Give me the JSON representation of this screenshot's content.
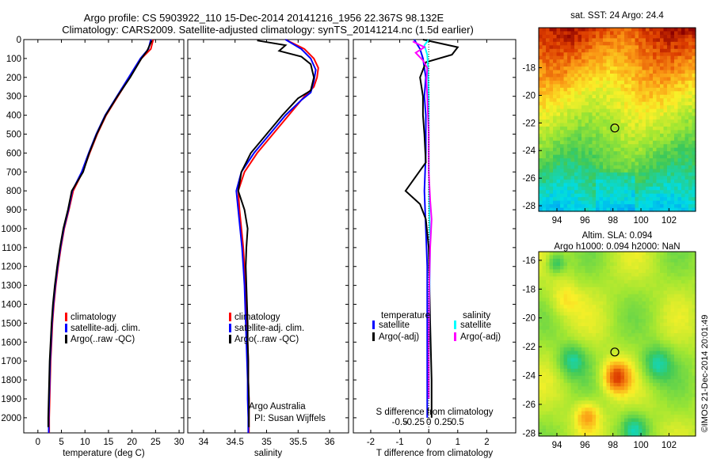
{
  "header": {
    "line1": "Argo profile: CS 5903922_110 15-Dec-2014 20141216_1956 22.367S 98.132E",
    "line2": "Climatology: CARS2009. Satellite-adjusted climatology: synTS_20141214.nc (1.5d earlier)"
  },
  "credit": "©IMOS 21-Dec-2014 20:01:49",
  "colors": {
    "climatology": "#ff0000",
    "satellite": "#0000ff",
    "argo": "#000000",
    "salinity_satellite": "#00ffff",
    "salinity_argo": "#ff00ff"
  },
  "chart_data": [
    {
      "type": "line",
      "xlabel": "temperature (deg C)",
      "xlim": [
        -3,
        31
      ],
      "ylim": [
        2080,
        0
      ],
      "xticks": [
        0,
        5,
        10,
        15,
        20,
        25,
        30
      ],
      "yticks": [
        0,
        100,
        200,
        300,
        400,
        500,
        600,
        700,
        800,
        900,
        1000,
        1100,
        1200,
        1300,
        1400,
        1500,
        1600,
        1700,
        1800,
        1900,
        2000
      ],
      "legend": [
        "climatology",
        "satellite-adj. clim.",
        "Argo(..raw -QC)"
      ],
      "series": [
        {
          "name": "climatology",
          "color": "#ff0000",
          "points": [
            [
              24.5,
              0
            ],
            [
              24.0,
              50
            ],
            [
              22.0,
              100
            ],
            [
              19.5,
              200
            ],
            [
              17.0,
              300
            ],
            [
              14.5,
              400
            ],
            [
              12.6,
              500
            ],
            [
              11.0,
              600
            ],
            [
              9.5,
              700
            ],
            [
              7.5,
              800
            ],
            [
              6.6,
              900
            ],
            [
              5.6,
              1000
            ],
            [
              4.9,
              1100
            ],
            [
              4.3,
              1200
            ],
            [
              3.8,
              1300
            ],
            [
              3.4,
              1400
            ],
            [
              3.1,
              1500
            ],
            [
              2.9,
              1600
            ],
            [
              2.7,
              1700
            ],
            [
              2.6,
              1800
            ],
            [
              2.5,
              1900
            ],
            [
              2.4,
              2000
            ],
            [
              2.4,
              2080
            ]
          ]
        },
        {
          "name": "satellite-adj. clim.",
          "color": "#0000ff",
          "points": [
            [
              24.0,
              0
            ],
            [
              23.5,
              50
            ],
            [
              21.8,
              100
            ],
            [
              19.3,
              200
            ],
            [
              16.8,
              300
            ],
            [
              14.3,
              400
            ],
            [
              12.4,
              500
            ],
            [
              10.8,
              600
            ],
            [
              9.3,
              700
            ],
            [
              7.3,
              800
            ],
            [
              6.5,
              900
            ],
            [
              5.5,
              1000
            ],
            [
              4.8,
              1100
            ],
            [
              4.2,
              1200
            ],
            [
              3.7,
              1300
            ],
            [
              3.3,
              1400
            ],
            [
              3.0,
              1500
            ],
            [
              2.8,
              1600
            ],
            [
              2.6,
              1700
            ],
            [
              2.5,
              1800
            ],
            [
              2.4,
              1900
            ],
            [
              2.3,
              2000
            ],
            [
              2.3,
              2080
            ]
          ]
        },
        {
          "name": "Argo(..raw -QC)",
          "color": "#000000",
          "points": [
            [
              24.2,
              5
            ],
            [
              23.2,
              60
            ],
            [
              22.0,
              100
            ],
            [
              19.6,
              200
            ],
            [
              16.9,
              300
            ],
            [
              14.4,
              400
            ],
            [
              12.5,
              500
            ],
            [
              10.9,
              600
            ],
            [
              9.6,
              700
            ],
            [
              7.2,
              800
            ],
            [
              6.4,
              900
            ],
            [
              5.4,
              1000
            ],
            [
              4.7,
              1100
            ],
            [
              4.1,
              1200
            ],
            [
              3.6,
              1300
            ],
            [
              3.2,
              1400
            ],
            [
              2.9,
              1500
            ],
            [
              2.7,
              1600
            ],
            [
              2.5,
              1700
            ],
            [
              2.4,
              1800
            ],
            [
              2.3,
              1900
            ],
            [
              2.2,
              2000
            ],
            [
              2.2,
              2050
            ]
          ]
        }
      ]
    },
    {
      "type": "line",
      "xlabel": "salinity",
      "xlim": [
        33.75,
        36.3
      ],
      "ylim": [
        2080,
        0
      ],
      "xticks": [
        34,
        34.5,
        35,
        35.5,
        36
      ],
      "legend": [
        "climatology",
        "satellite-adj. clim.",
        "Argo(..raw -QC)"
      ],
      "annotation": [
        "Argo Australia",
        "PI: Susan Wijffels"
      ],
      "series": [
        {
          "name": "climatology",
          "color": "#ff0000",
          "points": [
            [
              35.3,
              0
            ],
            [
              35.6,
              50
            ],
            [
              35.75,
              100
            ],
            [
              35.82,
              150
            ],
            [
              35.8,
              200
            ],
            [
              35.75,
              250
            ],
            [
              35.6,
              300
            ],
            [
              35.35,
              400
            ],
            [
              35.1,
              500
            ],
            [
              34.85,
              600
            ],
            [
              34.65,
              700
            ],
            [
              34.55,
              800
            ],
            [
              34.57,
              900
            ],
            [
              34.6,
              1000
            ],
            [
              34.63,
              1100
            ],
            [
              34.65,
              1200
            ],
            [
              34.67,
              1300
            ],
            [
              34.68,
              1400
            ],
            [
              34.69,
              1500
            ],
            [
              34.7,
              1600
            ],
            [
              34.71,
              1700
            ],
            [
              34.71,
              1800
            ],
            [
              34.72,
              1900
            ],
            [
              34.72,
              2000
            ],
            [
              34.72,
              2080
            ]
          ]
        },
        {
          "name": "satellite-adj. clim.",
          "color": "#0000ff",
          "points": [
            [
              35.3,
              0
            ],
            [
              35.55,
              50
            ],
            [
              35.7,
              100
            ],
            [
              35.78,
              160
            ],
            [
              35.75,
              220
            ],
            [
              35.7,
              280
            ],
            [
              35.55,
              320
            ],
            [
              35.3,
              400
            ],
            [
              35.05,
              500
            ],
            [
              34.8,
              600
            ],
            [
              34.6,
              700
            ],
            [
              34.52,
              800
            ],
            [
              34.55,
              900
            ],
            [
              34.58,
              1000
            ],
            [
              34.61,
              1100
            ],
            [
              34.63,
              1200
            ],
            [
              34.65,
              1300
            ],
            [
              34.66,
              1400
            ],
            [
              34.67,
              1500
            ],
            [
              34.68,
              1600
            ],
            [
              34.69,
              1700
            ],
            [
              34.7,
              1800
            ],
            [
              34.7,
              1900
            ],
            [
              34.71,
              2000
            ],
            [
              34.71,
              2080
            ]
          ]
        },
        {
          "name": "Argo(..raw -QC)",
          "color": "#000000",
          "points": [
            [
              34.85,
              5
            ],
            [
              35.3,
              30
            ],
            [
              35.2,
              60
            ],
            [
              35.55,
              90
            ],
            [
              35.7,
              130
            ],
            [
              35.75,
              200
            ],
            [
              35.7,
              270
            ],
            [
              35.5,
              310
            ],
            [
              35.25,
              400
            ],
            [
              35.0,
              500
            ],
            [
              34.75,
              600
            ],
            [
              34.6,
              700
            ],
            [
              34.55,
              800
            ],
            [
              34.65,
              900
            ],
            [
              34.7,
              1000
            ],
            [
              34.68,
              1100
            ],
            [
              34.67,
              1200
            ],
            [
              34.68,
              1300
            ],
            [
              34.69,
              1400
            ],
            [
              34.7,
              1500
            ],
            [
              34.7,
              1600
            ],
            [
              34.71,
              1700
            ],
            [
              34.71,
              1800
            ],
            [
              34.72,
              1900
            ],
            [
              34.72,
              2000
            ],
            [
              34.72,
              2050
            ]
          ]
        }
      ]
    },
    {
      "type": "line",
      "xlabel": "T difference from climatology",
      "xlabel_top": "S difference from climatology",
      "xlim": [
        -2.6,
        3
      ],
      "ylim": [
        2080,
        0
      ],
      "xticks": [
        -2,
        -1,
        0,
        1,
        2
      ],
      "xticks_top": [
        -0.5,
        -0.25,
        0,
        0.25,
        0.5
      ],
      "legend_temperature_title": "temperature",
      "legend_salinity_title": "salinity",
      "legend_temperature": [
        "satellite",
        "Argo(-adj)"
      ],
      "legend_salinity": [
        "satellite",
        "Argo(-adj)"
      ],
      "series": [
        {
          "name": "temperature satellite",
          "color": "#0000ff",
          "points": [
            [
              -0.5,
              0
            ],
            [
              -0.3,
              50
            ],
            [
              -0.2,
              100
            ],
            [
              -0.1,
              200
            ],
            [
              -0.15,
              300
            ],
            [
              -0.1,
              400
            ],
            [
              -0.1,
              600
            ],
            [
              -0.15,
              800
            ],
            [
              -0.1,
              1000
            ],
            [
              -0.05,
              1200
            ],
            [
              -0.05,
              1500
            ],
            [
              -0.05,
              1800
            ],
            [
              -0.05,
              2000
            ]
          ]
        },
        {
          "name": "temperature Argo(-adj)",
          "color": "#000000",
          "points": [
            [
              -0.2,
              0
            ],
            [
              1.0,
              40
            ],
            [
              0.8,
              80
            ],
            [
              -0.1,
              120
            ],
            [
              -0.3,
              200
            ],
            [
              -0.2,
              300
            ],
            [
              -0.2,
              400
            ],
            [
              -0.15,
              500
            ],
            [
              -0.1,
              650
            ],
            [
              -0.8,
              800
            ],
            [
              -0.3,
              870
            ],
            [
              -0.1,
              950
            ],
            [
              0.0,
              1100
            ],
            [
              0.05,
              1500
            ],
            [
              0.1,
              1800
            ],
            [
              0.1,
              2000
            ]
          ]
        },
        {
          "name": "salinity satellite",
          "color": "#00ffff",
          "points": [
            [
              0.0,
              0
            ],
            [
              -0.15,
              30
            ],
            [
              -0.05,
              80
            ],
            [
              -0.02,
              150
            ],
            [
              0.0,
              300
            ],
            [
              0.0,
              600
            ],
            [
              0.02,
              900
            ],
            [
              0.05,
              1100
            ],
            [
              0.02,
              1400
            ],
            [
              0.0,
              1700
            ],
            [
              0.0,
              1900
            ]
          ]
        },
        {
          "name": "salinity Argo(-adj)",
          "color": "#ff00ff",
          "points": [
            [
              -0.55,
              10
            ],
            [
              -0.15,
              40
            ],
            [
              -0.45,
              70
            ],
            [
              -0.2,
              110
            ],
            [
              -0.05,
              150
            ],
            [
              -0.08,
              220
            ],
            [
              -0.05,
              300
            ],
            [
              0.0,
              500
            ],
            [
              0.0,
              700
            ],
            [
              0.05,
              850
            ],
            [
              0.1,
              950
            ],
            [
              0.05,
              1100
            ],
            [
              0.02,
              1300
            ],
            [
              0.0,
              1600
            ],
            [
              0.0,
              1900
            ]
          ]
        }
      ]
    },
    {
      "type": "heatmap",
      "title": "sat. SST: 24 Argo: 24.4",
      "xlim": [
        92.7,
        103.9
      ],
      "ylim": [
        -28.4,
        -15.1
      ],
      "xticks": [
        94,
        96,
        98,
        100,
        102
      ],
      "yticks": [
        -18,
        -20,
        -22,
        -24,
        -26,
        -28
      ],
      "marker": [
        98.132,
        -22.367
      ]
    },
    {
      "type": "heatmap",
      "title_line1": "Altim. SLA: 0.094",
      "title_line2": "Argo h1000: 0.094 h2000: NaN",
      "xlim": [
        92.7,
        103.9
      ],
      "ylim": [
        -28.2,
        -15.4
      ],
      "xticks": [
        94,
        96,
        98,
        100,
        102
      ],
      "yticks": [
        -16,
        -18,
        -20,
        -22,
        -24,
        -26,
        -28
      ],
      "marker": [
        98.132,
        -22.367
      ]
    }
  ]
}
